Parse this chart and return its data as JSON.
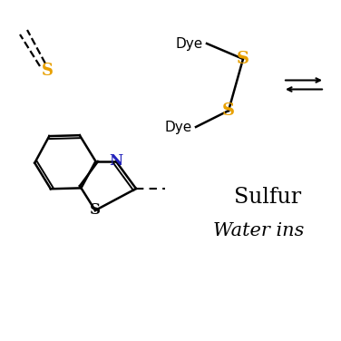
{
  "bg_color": "#ffffff",
  "sulfur_color": "#E8A000",
  "nitrogen_color": "#2222BB",
  "black_color": "#000000",
  "title_text": "Sulfur",
  "subtitle_text": "Water ins",
  "dye_label": "Dye",
  "s_label": "S",
  "n_label": "N",
  "figsize": [
    3.76,
    3.76
  ],
  "dpi": 100
}
